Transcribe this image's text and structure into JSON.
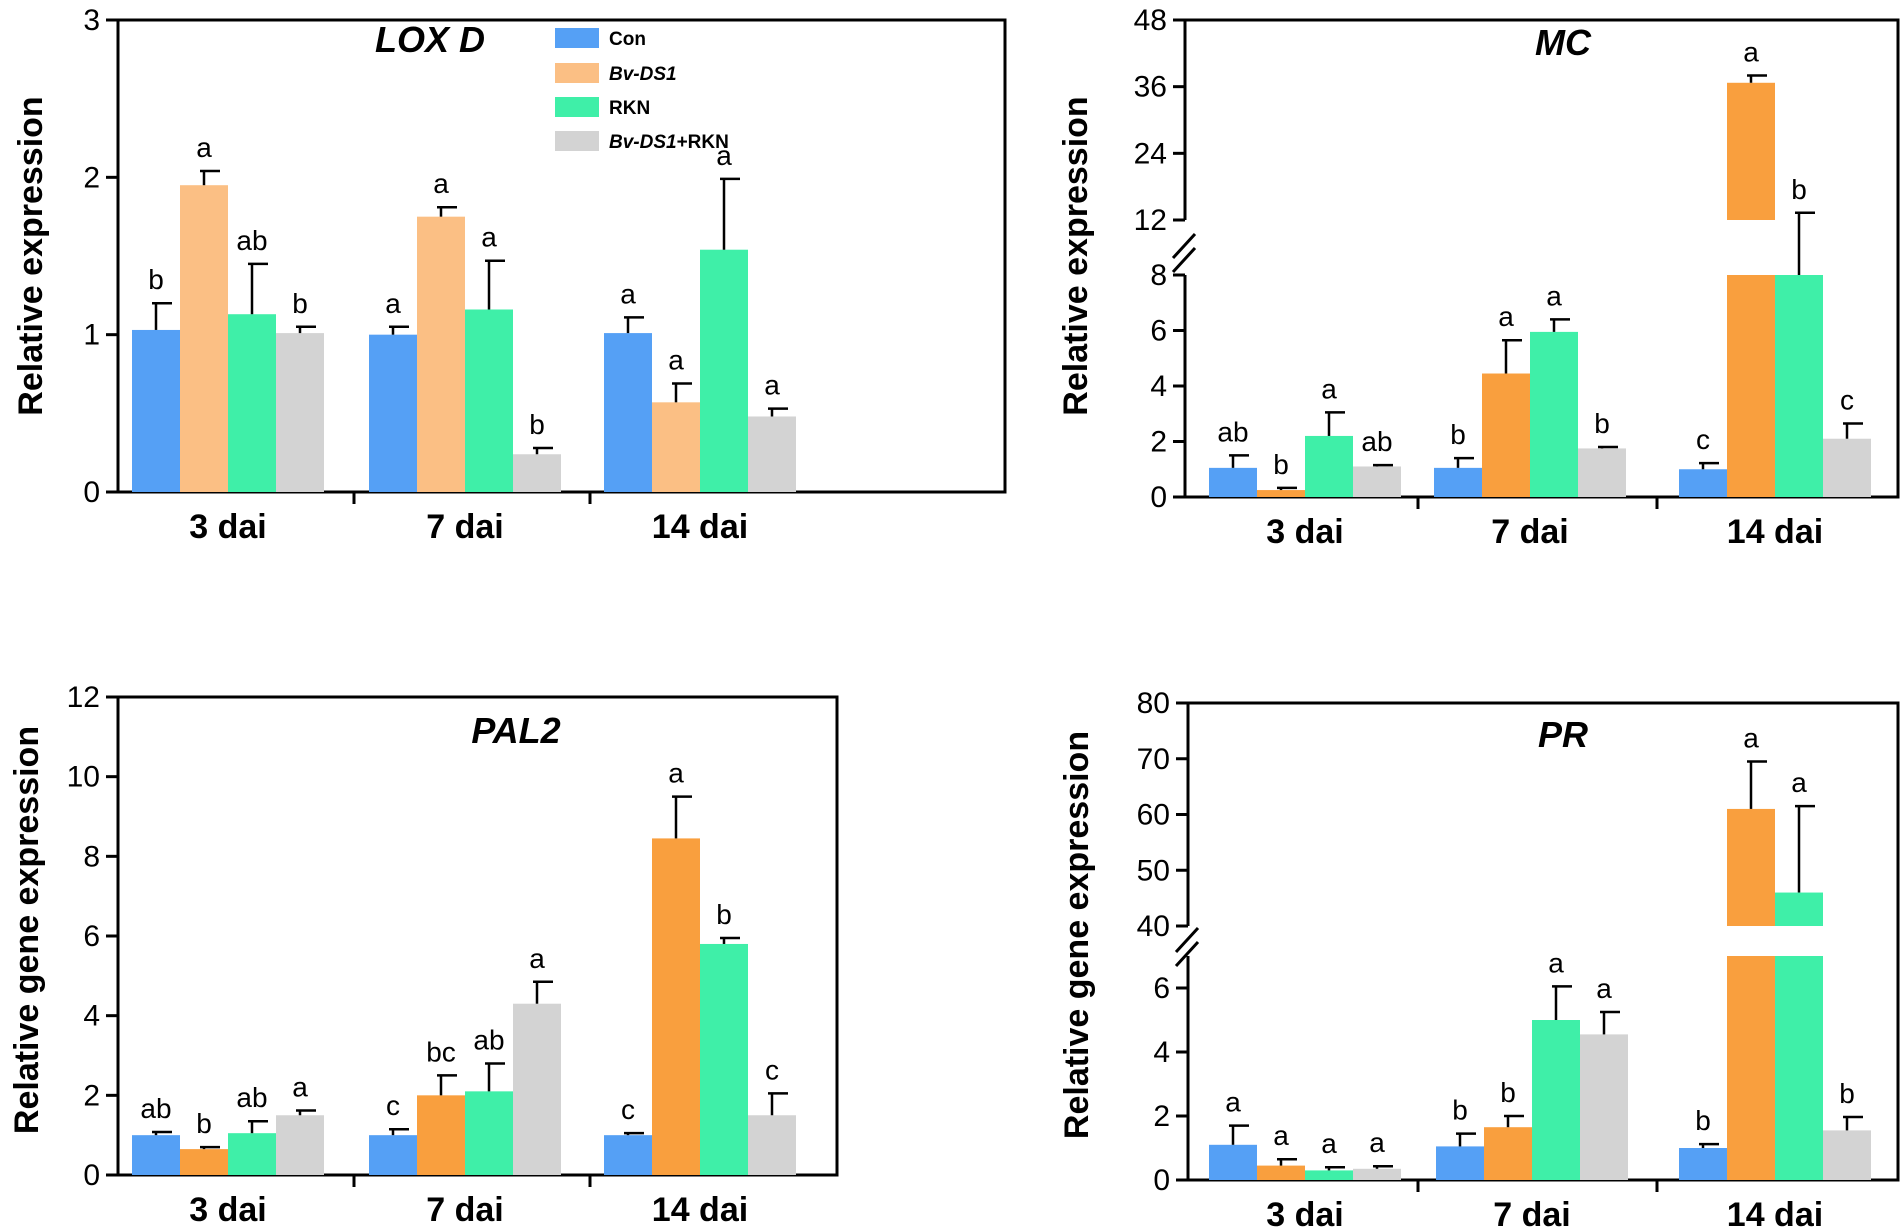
{
  "chart_data": [
    {
      "type": "bar",
      "title": "LOX D",
      "ylabel": "Relative expression",
      "xlabel": "",
      "categories": [
        "3 dai",
        "7 dai",
        "14 dai"
      ],
      "ylim": [
        0,
        3
      ],
      "yticks": [
        0,
        1,
        2,
        3
      ],
      "palette": "light",
      "series": [
        {
          "name": "Con",
          "values": [
            1.03,
            1.0,
            1.01
          ],
          "errors": [
            0.17,
            0.05,
            0.1
          ],
          "labels": [
            "b",
            "a",
            "a"
          ]
        },
        {
          "name": "Bv-DS1",
          "values": [
            1.95,
            1.75,
            0.57
          ],
          "errors": [
            0.09,
            0.06,
            0.12
          ],
          "labels": [
            "a",
            "a",
            "a"
          ]
        },
        {
          "name": "RKN",
          "values": [
            1.13,
            1.16,
            1.54
          ],
          "errors": [
            0.32,
            0.31,
            0.45
          ],
          "labels": [
            "ab",
            "a",
            "a"
          ]
        },
        {
          "name": "Bv-DS1+RKN",
          "values": [
            1.01,
            0.24,
            0.48
          ],
          "errors": [
            0.04,
            0.04,
            0.05
          ],
          "labels": [
            "b",
            "b",
            "a"
          ]
        }
      ]
    },
    {
      "type": "bar",
      "title": "MC",
      "ylabel": "Relative expression",
      "xlabel": "",
      "categories": [
        "3 dai",
        "7 dai",
        "14 dai"
      ],
      "ylim": [
        0,
        48
      ],
      "axis_break": [
        8,
        12
      ],
      "yticks": [
        0,
        2,
        4,
        6,
        8,
        12,
        24,
        36,
        48
      ],
      "palette": "dark",
      "series": [
        {
          "name": "Con",
          "values": [
            1.05,
            1.05,
            1.0
          ],
          "errors": [
            0.45,
            0.35,
            0.22
          ],
          "labels": [
            "ab",
            "b",
            "c"
          ]
        },
        {
          "name": "Bv-DS1",
          "values": [
            0.25,
            4.45,
            36.7
          ],
          "errors": [
            0.08,
            1.2,
            1.3
          ],
          "labels": [
            "b",
            "a",
            "a"
          ]
        },
        {
          "name": "RKN",
          "values": [
            2.2,
            5.95,
            11.8
          ],
          "errors": [
            0.85,
            0.45,
            1.5
          ],
          "labels": [
            "a",
            "a",
            "b"
          ]
        },
        {
          "name": "Bv-DS1+RKN",
          "values": [
            1.1,
            1.75,
            2.1
          ],
          "errors": [
            0.05,
            0.05,
            0.55
          ],
          "labels": [
            "ab",
            "b",
            "c"
          ]
        }
      ]
    },
    {
      "type": "bar",
      "title": "PAL2",
      "ylabel": "Relative gene expression",
      "xlabel": "",
      "categories": [
        "3 dai",
        "7 dai",
        "14 dai"
      ],
      "ylim": [
        0,
        12
      ],
      "yticks": [
        0,
        2,
        4,
        6,
        8,
        10,
        12
      ],
      "palette": "dark",
      "series": [
        {
          "name": "Con",
          "values": [
            1.0,
            1.0,
            1.0
          ],
          "errors": [
            0.08,
            0.15,
            0.05
          ],
          "labels": [
            "ab",
            "c",
            "c"
          ]
        },
        {
          "name": "Bv-DS1",
          "values": [
            0.65,
            2.0,
            8.45
          ],
          "errors": [
            0.05,
            0.5,
            1.05
          ],
          "labels": [
            "b",
            "bc",
            "a"
          ]
        },
        {
          "name": "RKN",
          "values": [
            1.05,
            2.1,
            5.8
          ],
          "errors": [
            0.3,
            0.7,
            0.15
          ],
          "labels": [
            "ab",
            "ab",
            "b"
          ]
        },
        {
          "name": "Bv-DS1+RKN",
          "values": [
            1.5,
            4.3,
            1.5
          ],
          "errors": [
            0.12,
            0.55,
            0.55
          ],
          "labels": [
            "a",
            "a",
            "c"
          ]
        }
      ]
    },
    {
      "type": "bar",
      "title": "PR",
      "ylabel": "Relative gene expression",
      "xlabel": "",
      "categories": [
        "3 dai",
        "7 dai",
        "14 dai"
      ],
      "ylim": [
        0,
        80
      ],
      "axis_break": [
        7,
        40
      ],
      "yticks": [
        0,
        2,
        4,
        6,
        40,
        50,
        60,
        70,
        80
      ],
      "palette": "dark",
      "series": [
        {
          "name": "Con",
          "values": [
            1.1,
            1.05,
            1.0
          ],
          "errors": [
            0.6,
            0.4,
            0.12
          ],
          "labels": [
            "a",
            "b",
            "b"
          ]
        },
        {
          "name": "Bv-DS1",
          "values": [
            0.45,
            1.65,
            61.0
          ],
          "errors": [
            0.2,
            0.35,
            8.5
          ],
          "labels": [
            "a",
            "b",
            "a"
          ]
        },
        {
          "name": "RKN",
          "values": [
            0.3,
            5.0,
            46.0
          ],
          "errors": [
            0.1,
            1.05,
            15.5
          ],
          "labels": [
            "a",
            "a",
            "a"
          ]
        },
        {
          "name": "Bv-DS1+RKN",
          "values": [
            0.35,
            4.55,
            1.55
          ],
          "errors": [
            0.08,
            0.7,
            0.42
          ],
          "labels": [
            "a",
            "a",
            "b"
          ]
        }
      ]
    }
  ],
  "legend": {
    "entries": [
      {
        "italic": "",
        "plain": "Con"
      },
      {
        "italic": "Bv-DS1",
        "plain": ""
      },
      {
        "italic": "",
        "plain": "RKN"
      },
      {
        "italic": "Bv-DS1",
        "plain": "+RKN"
      }
    ],
    "position": "top-right of LOX D panel"
  },
  "colors": {
    "light": [
      "#55a0f5",
      "#fbbf84",
      "#3fefa8",
      "#d3d3d3"
    ],
    "dark": [
      "#55a0f5",
      "#f99f3e",
      "#3fefa8",
      "#d3d3d3"
    ]
  }
}
